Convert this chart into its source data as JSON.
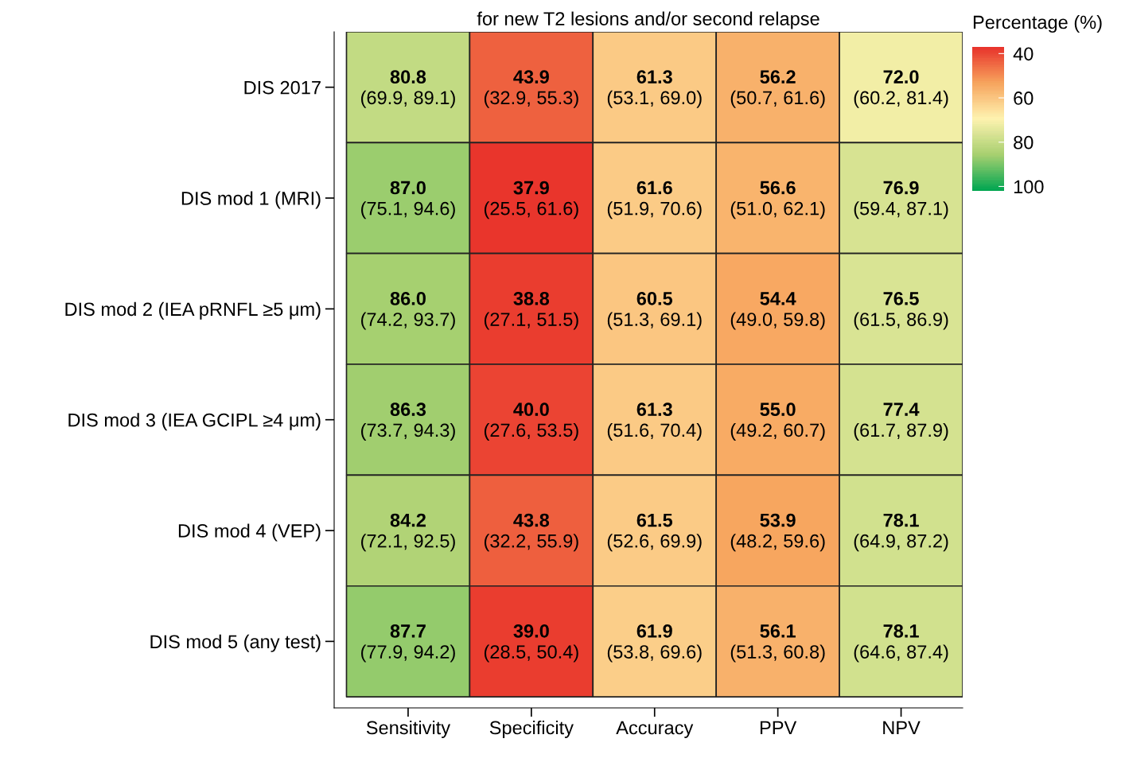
{
  "chart_data": {
    "type": "heatmap",
    "title": "for new T2 lesions and/or second relapse",
    "clabel": "Percentage (%)",
    "categories": [
      "Sensitivity",
      "Specificity",
      "Accuracy",
      "PPV",
      "NPV"
    ],
    "y_categories": [
      "DIS 2017",
      "DIS mod 1 (MRI)",
      "DIS mod 2 (IEA pRNFL ≥5 μm)",
      "DIS mod 3 (IEA GCIPL ≥4 μm)",
      "DIS mod 4 (VEP)",
      "DIS mod 5 (any test)"
    ],
    "cells": [
      [
        80.8,
        43.9,
        61.3,
        56.2,
        72.0
      ],
      [
        87.0,
        37.9,
        61.6,
        56.6,
        76.9
      ],
      [
        86.0,
        38.8,
        60.5,
        54.4,
        76.5
      ],
      [
        86.3,
        40.0,
        61.3,
        55.0,
        77.4
      ],
      [
        84.2,
        43.8,
        61.5,
        53.9,
        78.1
      ],
      [
        87.7,
        39.0,
        61.9,
        56.1,
        78.1
      ]
    ],
    "cell_labels": [
      [
        "80.8\n(69.9, 89.1)",
        "43.9\n(32.9, 55.3)",
        "61.3\n(53.1, 69.0)",
        "56.2\n(50.7, 61.6)",
        "72.0\n(60.2, 81.4)"
      ],
      [
        "87.0\n(75.1, 94.6)",
        "37.9\n(25.5, 61.6)",
        "61.6\n(51.9, 70.6)",
        "56.6\n(51.0, 62.1)",
        "76.9\n(59.4, 87.1)"
      ],
      [
        "86.0\n(74.2, 93.7)",
        "38.8\n(27.1, 51.5)",
        "60.5\n(51.3, 69.1)",
        "54.4\n(49.0, 59.8)",
        "76.5\n(61.5, 86.9)"
      ],
      [
        "86.3\n(73.7, 94.3)",
        "40.0\n(27.6, 53.5)",
        "61.3\n(51.6, 70.4)",
        "55.0\n(49.2, 60.7)",
        "77.4\n(61.7, 87.9)"
      ],
      [
        "84.2\n(72.1, 92.5)",
        "43.8\n(32.2, 55.9)",
        "61.5\n(52.6, 69.9)",
        "53.9\n(48.2, 59.6)",
        "78.1\n(64.9, 87.2)"
      ],
      [
        "87.7\n(77.9, 94.2)",
        "39.0\n(28.5, 50.4)",
        "61.9\n(53.8, 69.6)",
        "56.1\n(51.3, 60.8)",
        "78.1\n(64.6, 87.4)"
      ]
    ],
    "clim": [
      102,
      37
    ],
    "cticks": [
      40,
      60,
      80,
      100
    ]
  }
}
